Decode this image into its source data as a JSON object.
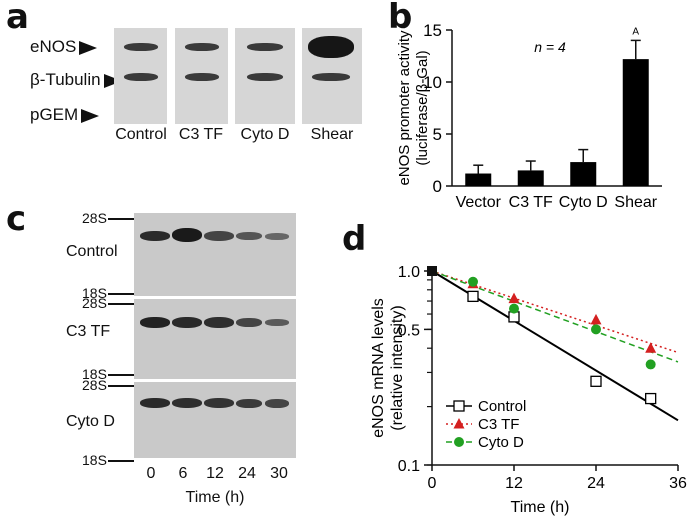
{
  "panel_a": {
    "letter": "a",
    "band_labels": [
      "eNOS",
      "β-Tubulin",
      "pGEM"
    ],
    "lanes": [
      "Control",
      "C3 TF",
      "Cyto D",
      "Shear"
    ]
  },
  "panel_b": {
    "letter": "b",
    "annotation": "n = 4",
    "significance_mark": "A"
  },
  "panel_c": {
    "letter": "c",
    "rows": [
      {
        "name": "Control",
        "top_marker": "28S",
        "bottom_marker": "18S"
      },
      {
        "name": "C3 TF",
        "top_marker": "28S",
        "bottom_marker": "18S"
      },
      {
        "name": "Cyto D",
        "top_marker": "28S",
        "bottom_marker": "18S"
      }
    ],
    "time_points": [
      "0",
      "6",
      "12",
      "24",
      "30"
    ],
    "xlabel": "Time (h)"
  },
  "panel_d": {
    "letter": "d"
  },
  "chart_data": [
    {
      "type": "bar",
      "panel": "b",
      "categories": [
        "Vector",
        "C3 TF",
        "Cyto D",
        "Shear"
      ],
      "values": [
        1.2,
        1.5,
        2.3,
        12.2
      ],
      "errors": [
        0.8,
        0.9,
        1.2,
        1.8
      ],
      "ylabel": "eNOS promoter activity",
      "ylabel2": "(luciferase/β-Gal)",
      "ylim": [
        0,
        15
      ],
      "yticks": [
        "0",
        "5",
        "10",
        "15"
      ],
      "bar_color": "#000000"
    },
    {
      "type": "scatter",
      "panel": "d",
      "xlabel": "Time (h)",
      "ylabel": "eNOS mRNA levels",
      "ylabel2": "(relative intensity)",
      "yscale": "log",
      "xlim": [
        0,
        36
      ],
      "ylim": [
        0.1,
        1.0
      ],
      "xticks": [
        "0",
        "12",
        "24",
        "36"
      ],
      "yticks": [
        "0.1",
        "0.5",
        "1.0"
      ],
      "legend_position": "bottom-left",
      "series": [
        {
          "name": "Control",
          "x": [
            0,
            6,
            12,
            24,
            32
          ],
          "y": [
            1.0,
            0.74,
            0.58,
            0.27,
            0.22
          ],
          "fit_end": 0.17,
          "color": "#000000",
          "marker": "open-square",
          "line": "solid"
        },
        {
          "name": "C3 TF",
          "x": [
            0,
            6,
            12,
            24,
            32
          ],
          "y": [
            1.0,
            0.86,
            0.72,
            0.56,
            0.4
          ],
          "fit_end": 0.38,
          "color": "#d42020",
          "marker": "triangle",
          "line": "dotted"
        },
        {
          "name": "Cyto D",
          "x": [
            0,
            6,
            12,
            24,
            32
          ],
          "y": [
            1.0,
            0.88,
            0.64,
            0.5,
            0.33
          ],
          "fit_end": 0.34,
          "color": "#22a022",
          "marker": "circle",
          "line": "dashed"
        }
      ]
    }
  ]
}
